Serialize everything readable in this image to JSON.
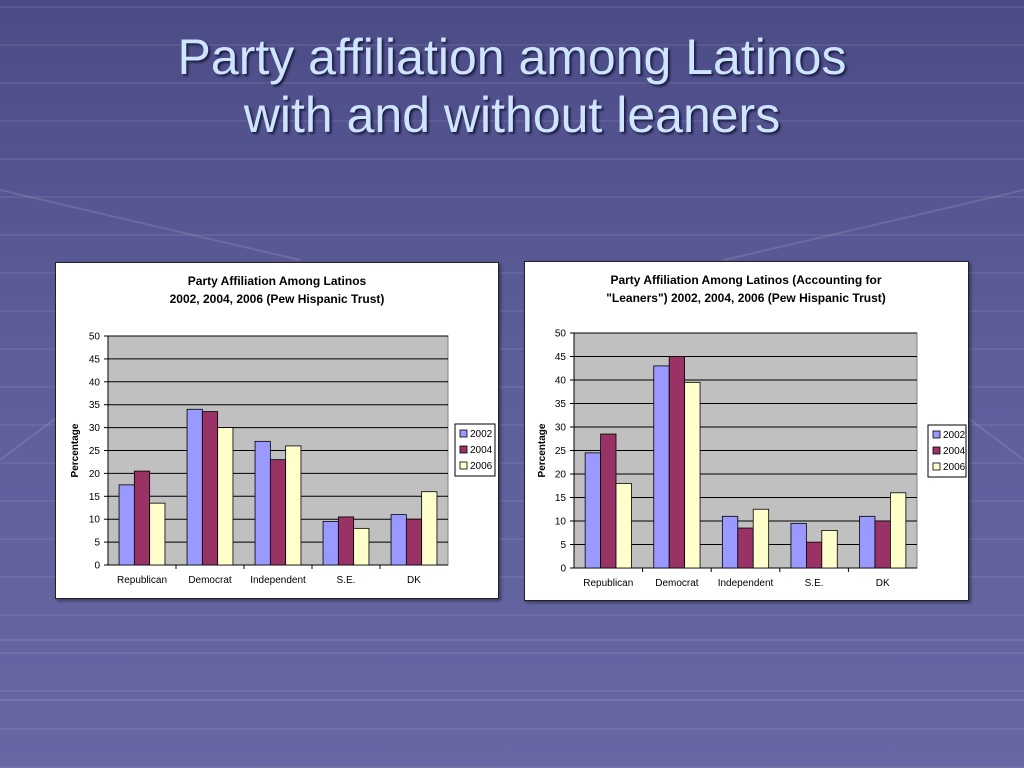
{
  "slide": {
    "title_line1": "Party affiliation among Latinos",
    "title_line2": "with and without leaners"
  },
  "colors": {
    "2002": "#9999ff",
    "2004": "#993366",
    "2006": "#ffffcc",
    "plot_bg": "#c0c0c0"
  },
  "chart_data": [
    {
      "type": "bar",
      "title": [
        "Party Affiliation Among Latinos",
        "2002, 2004, 2006 (Pew Hispanic Trust)"
      ],
      "xlabel": "",
      "ylabel": "Percentage",
      "ylim": [
        0,
        50
      ],
      "yticks": [
        0,
        5,
        10,
        15,
        20,
        25,
        30,
        35,
        40,
        45,
        50
      ],
      "grid": true,
      "legend_position": "right",
      "categories": [
        "Republican",
        "Democrat",
        "Independent",
        "S.E.",
        "DK"
      ],
      "series": [
        {
          "name": "2002",
          "values": [
            17.5,
            34,
            27,
            9.5,
            11
          ]
        },
        {
          "name": "2004",
          "values": [
            20.5,
            33.5,
            23,
            10.5,
            10
          ]
        },
        {
          "name": "2006",
          "values": [
            13.5,
            30,
            26,
            8,
            16
          ]
        }
      ]
    },
    {
      "type": "bar",
      "title": [
        "Party Affiliation Among Latinos (Accounting for",
        "\"Leaners\") 2002, 2004, 2006 (Pew Hispanic Trust)"
      ],
      "xlabel": "",
      "ylabel": "Percentage",
      "ylim": [
        0,
        50
      ],
      "yticks": [
        0,
        5,
        10,
        15,
        20,
        25,
        30,
        35,
        40,
        45,
        50
      ],
      "grid": true,
      "legend_position": "right",
      "categories": [
        "Republican",
        "Democrat",
        "Independent",
        "S.E.",
        "DK"
      ],
      "series": [
        {
          "name": "2002",
          "values": [
            24.5,
            43,
            11,
            9.5,
            11
          ]
        },
        {
          "name": "2004",
          "values": [
            28.5,
            45,
            8.5,
            5.5,
            10
          ]
        },
        {
          "name": "2006",
          "values": [
            18,
            39.5,
            12.5,
            8,
            16
          ]
        }
      ]
    }
  ]
}
